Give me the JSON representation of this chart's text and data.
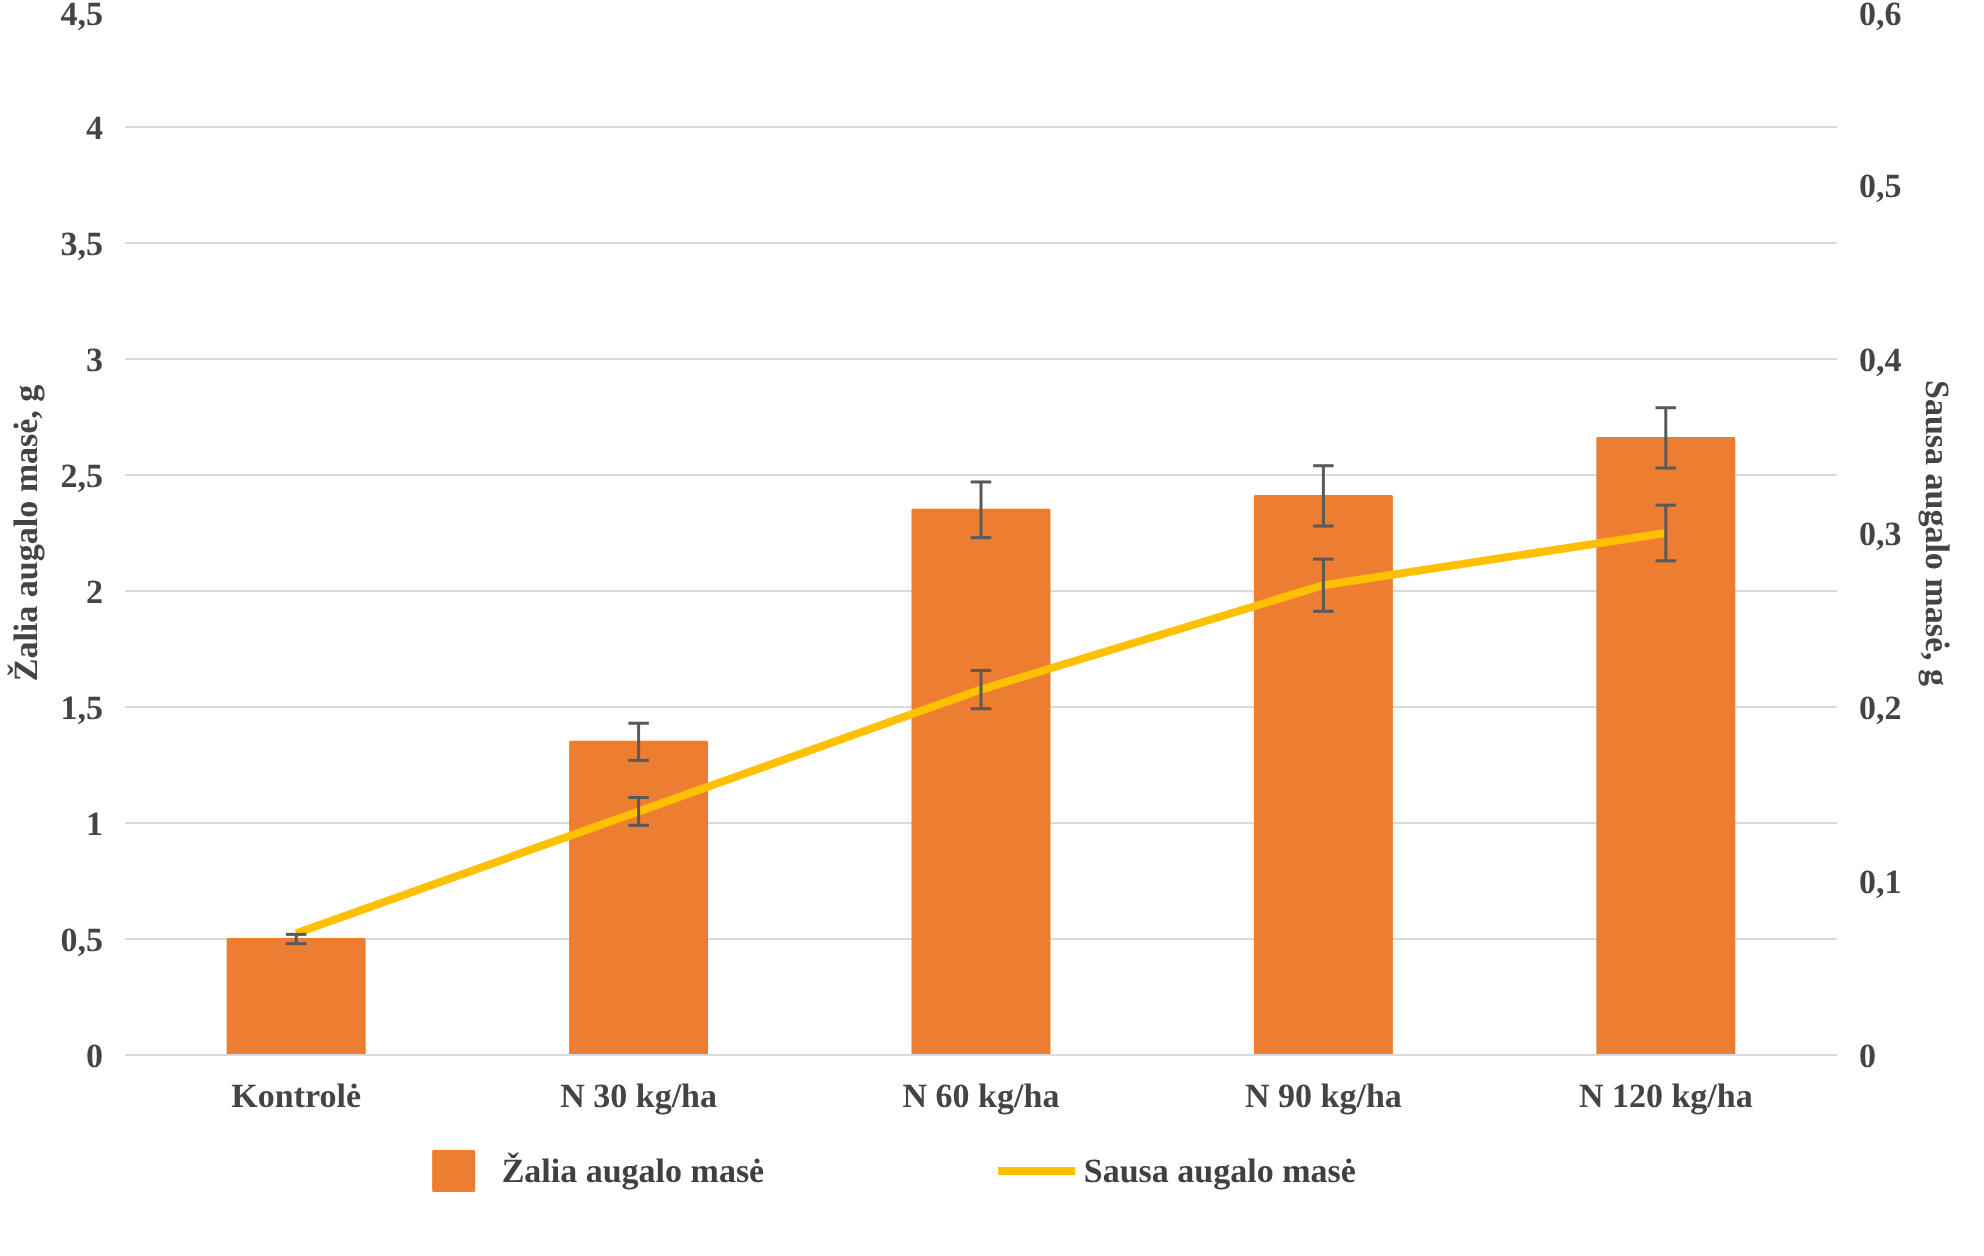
{
  "chart_data": {
    "type": "bar",
    "categories": [
      "Kontrolė",
      "N 30 kg/ha",
      "N 60 kg/ha",
      "N 90 kg/ha",
      "N 120 kg/ha"
    ],
    "ylabel": "Žalia augalo masė, g",
    "y2label": "Sausa augalo masė, g",
    "ylim": [
      0,
      4.5
    ],
    "yticks": [
      0,
      {
        "value": 0.5,
        "label": "0,5"
      },
      1,
      {
        "value": 1.5,
        "label": "1,5"
      },
      2,
      {
        "value": 2.5,
        "label": "2,5"
      },
      3,
      {
        "value": 3.5,
        "label": "3,5"
      },
      4,
      {
        "value": 4.5,
        "label": "4,5"
      }
    ],
    "y2lim": [
      0,
      0.6
    ],
    "y2ticks": [
      0,
      {
        "value": 0.1,
        "label": "0,1"
      },
      {
        "value": 0.2,
        "label": "0,2"
      },
      {
        "value": 0.3,
        "label": "0,3"
      },
      {
        "value": 0.4,
        "label": "0,4"
      },
      {
        "value": 0.5,
        "label": "0,5"
      },
      {
        "value": 0.6,
        "label": "0,6"
      }
    ],
    "series": [
      {
        "name": "Žalia augalo masė",
        "color": "#ed7d31",
        "values": [
          0.5,
          1.35,
          2.35,
          2.41,
          2.66
        ],
        "errors": [
          0.02,
          0.08,
          0.12,
          0.13,
          0.13
        ]
      },
      {
        "name": "Sausa augalo masė",
        "type": "line",
        "axis": "y2",
        "color": "#ffc000",
        "values": [
          0.07,
          0.14,
          0.21,
          0.27,
          0.3
        ],
        "errors": [
          null,
          0.008,
          0.011,
          0.015,
          0.016
        ]
      }
    ],
    "grid": "y",
    "legend": "bottom"
  }
}
